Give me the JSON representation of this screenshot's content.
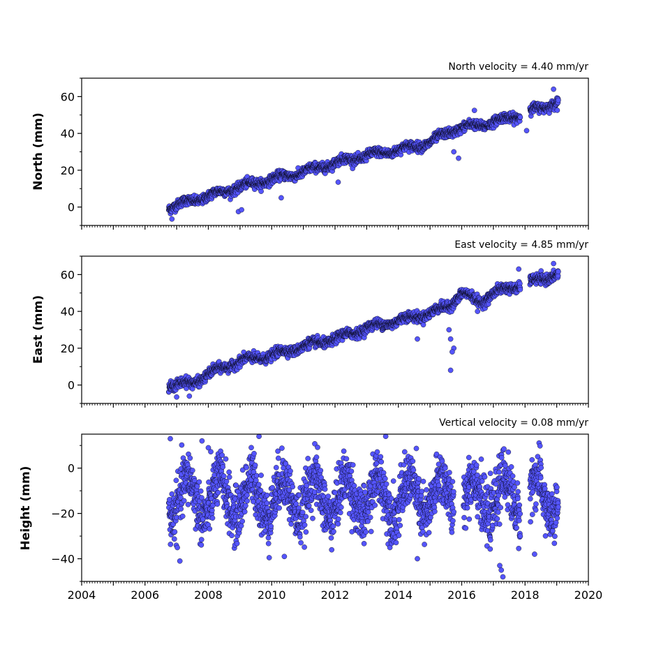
{
  "chart_data": [
    {
      "type": "scatter",
      "title": "North velocity = 4.40 mm/yr",
      "ylabel": "North (mm)",
      "xlim": [
        2004,
        2020
      ],
      "ylim": [
        -10,
        70
      ],
      "yticks": [
        0,
        20,
        40,
        60
      ],
      "yticklabels": [
        "0",
        "20",
        "40",
        "60"
      ],
      "grid": false,
      "marker_color": "#5555ff",
      "marker_edge": "#000000",
      "x_range": [
        2006.75,
        2019.05
      ],
      "trend": [
        {
          "x": 2006.8,
          "y": 0
        },
        {
          "x": 2008.0,
          "y": 6
        },
        {
          "x": 2009.0,
          "y": 11
        },
        {
          "x": 2010.0,
          "y": 15
        },
        {
          "x": 2011.0,
          "y": 19
        },
        {
          "x": 2012.0,
          "y": 24
        },
        {
          "x": 2013.0,
          "y": 28
        },
        {
          "x": 2014.0,
          "y": 31
        },
        {
          "x": 2015.0,
          "y": 35
        },
        {
          "x": 2015.6,
          "y": 41
        },
        {
          "x": 2016.0,
          "y": 43
        },
        {
          "x": 2017.0,
          "y": 46
        },
        {
          "x": 2018.0,
          "y": 51
        },
        {
          "x": 2019.0,
          "y": 57
        }
      ],
      "spread": 2.2,
      "gaps": [
        [
          2017.85,
          2018.15
        ]
      ],
      "outliers": [
        {
          "x": 2006.85,
          "y": -6.5
        },
        {
          "x": 2008.95,
          "y": -2.5
        },
        {
          "x": 2009.05,
          "y": -1.5
        },
        {
          "x": 2010.3,
          "y": 5
        },
        {
          "x": 2012.1,
          "y": 13.5
        },
        {
          "x": 2015.75,
          "y": 30
        },
        {
          "x": 2015.9,
          "y": 26.5
        },
        {
          "x": 2016.4,
          "y": 52.5
        },
        {
          "x": 2018.05,
          "y": 41.5
        },
        {
          "x": 2018.9,
          "y": 64
        }
      ]
    },
    {
      "type": "scatter",
      "title": "East velocity = 4.85 mm/yr",
      "ylabel": "East (mm)",
      "xlim": [
        2004,
        2020
      ],
      "ylim": [
        -10,
        70
      ],
      "yticks": [
        0,
        20,
        40,
        60
      ],
      "yticklabels": [
        "0",
        "20",
        "40",
        "60"
      ],
      "grid": false,
      "marker_color": "#5555ff",
      "marker_edge": "#000000",
      "x_range": [
        2006.75,
        2019.05
      ],
      "trend": [
        {
          "x": 2006.8,
          "y": 0
        },
        {
          "x": 2007.5,
          "y": 1
        },
        {
          "x": 2008.0,
          "y": 6
        },
        {
          "x": 2009.0,
          "y": 13
        },
        {
          "x": 2010.0,
          "y": 16
        },
        {
          "x": 2011.0,
          "y": 21
        },
        {
          "x": 2012.0,
          "y": 25
        },
        {
          "x": 2013.0,
          "y": 31
        },
        {
          "x": 2014.0,
          "y": 35
        },
        {
          "x": 2015.0,
          "y": 39
        },
        {
          "x": 2015.6,
          "y": 43
        },
        {
          "x": 2016.0,
          "y": 50
        },
        {
          "x": 2016.6,
          "y": 45
        },
        {
          "x": 2017.0,
          "y": 50
        },
        {
          "x": 2018.0,
          "y": 55
        },
        {
          "x": 2019.0,
          "y": 60
        }
      ],
      "spread": 2.3,
      "gaps": [
        [
          2017.85,
          2018.15
        ]
      ],
      "outliers": [
        {
          "x": 2007.0,
          "y": -6.5
        },
        {
          "x": 2007.4,
          "y": -6
        },
        {
          "x": 2015.6,
          "y": 30
        },
        {
          "x": 2015.65,
          "y": 25
        },
        {
          "x": 2015.75,
          "y": 20
        },
        {
          "x": 2015.7,
          "y": 18
        },
        {
          "x": 2015.65,
          "y": 8
        },
        {
          "x": 2014.6,
          "y": 25
        },
        {
          "x": 2016.5,
          "y": 40
        },
        {
          "x": 2018.9,
          "y": 66
        },
        {
          "x": 2017.8,
          "y": 63
        }
      ]
    },
    {
      "type": "scatter",
      "title": "Vertical velocity = 0.08 mm/yr",
      "ylabel": "Height (mm)",
      "xlabel": "",
      "xlim": [
        2004,
        2020
      ],
      "ylim": [
        -50,
        15
      ],
      "yticks": [
        0,
        -20,
        -40
      ],
      "yticklabels": [
        "0",
        "−20",
        "−40"
      ],
      "xticks": [
        2004,
        2006,
        2008,
        2010,
        2012,
        2014,
        2016,
        2018,
        2020
      ],
      "xticklabels": [
        "2004",
        "2006",
        "2008",
        "2010",
        "2012",
        "2014",
        "2016",
        "2018",
        "2020"
      ],
      "grid": false,
      "marker_color": "#5555ff",
      "marker_edge": "#000000",
      "x_range": [
        2006.75,
        2019.05
      ],
      "seasonal_mean": -13,
      "seasonal_amplitude": 9,
      "spread": 6,
      "gaps": [
        [
          2015.75,
          2016.05
        ],
        [
          2017.85,
          2018.15
        ]
      ],
      "outliers": [
        {
          "x": 2006.8,
          "y": 13
        },
        {
          "x": 2007.8,
          "y": 12
        },
        {
          "x": 2009.6,
          "y": 14
        },
        {
          "x": 2013.6,
          "y": 14
        },
        {
          "x": 2008.0,
          "y": 9
        },
        {
          "x": 2007.1,
          "y": -41
        },
        {
          "x": 2010.4,
          "y": -39
        },
        {
          "x": 2014.6,
          "y": -40
        },
        {
          "x": 2017.25,
          "y": -45
        },
        {
          "x": 2017.3,
          "y": -48
        },
        {
          "x": 2018.3,
          "y": -38
        },
        {
          "x": 2017.2,
          "y": -43
        }
      ]
    }
  ]
}
